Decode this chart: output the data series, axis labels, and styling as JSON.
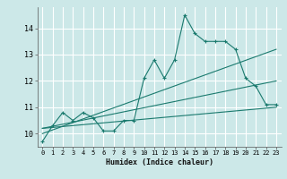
{
  "xlabel": "Humidex (Indice chaleur)",
  "background_color": "#cce8e8",
  "grid_color": "#ffffff",
  "line_color": "#1a7a6e",
  "x_ticks": [
    0,
    1,
    2,
    3,
    4,
    5,
    6,
    7,
    8,
    9,
    10,
    11,
    12,
    13,
    14,
    15,
    16,
    17,
    18,
    19,
    20,
    21,
    22,
    23
  ],
  "y_ticks": [
    10,
    11,
    12,
    13,
    14
  ],
  "ylim": [
    9.5,
    14.8
  ],
  "xlim": [
    -0.5,
    23.5
  ],
  "series": [
    {
      "x": [
        0,
        1,
        2,
        3,
        4,
        5,
        6,
        7,
        8,
        9,
        10,
        11,
        12,
        13,
        14,
        15,
        16,
        17,
        18,
        19,
        20,
        21,
        22,
        23
      ],
      "y": [
        9.7,
        10.3,
        10.8,
        10.5,
        10.8,
        10.6,
        10.1,
        10.1,
        10.5,
        10.5,
        12.1,
        12.8,
        12.1,
        12.8,
        14.5,
        13.8,
        13.5,
        13.5,
        13.5,
        13.2,
        12.1,
        11.8,
        11.1,
        11.1
      ],
      "marker": "+"
    },
    {
      "x": [
        0,
        23
      ],
      "y": [
        10.0,
        13.2
      ],
      "marker": null
    },
    {
      "x": [
        0,
        23
      ],
      "y": [
        10.2,
        12.0
      ],
      "marker": null
    },
    {
      "x": [
        0,
        23
      ],
      "y": [
        10.2,
        11.0
      ],
      "marker": null
    }
  ]
}
